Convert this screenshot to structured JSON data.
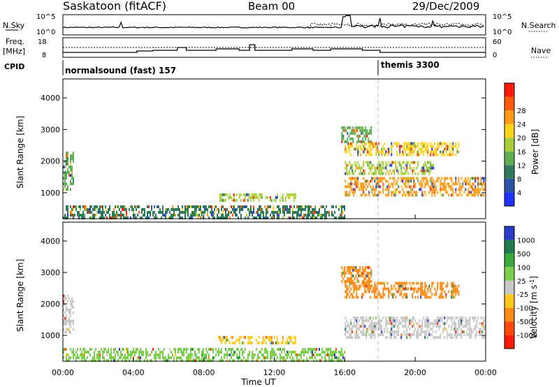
{
  "header": {
    "station": "Saskatoon (fitACF)",
    "beam": "Beam 00",
    "date": "29/Dec/2009"
  },
  "panels": {
    "nsky": {
      "label": "N.Sky",
      "left_ticks": [
        "10^5",
        "10^0"
      ],
      "right_ticks": [
        "10^5",
        "10^0"
      ],
      "right_label": "N.Search"
    },
    "freq": {
      "label_top": "Freq.",
      "label_unit": "[MHz]",
      "left_ticks": [
        "18",
        "8"
      ],
      "right_ticks": [
        "60",
        "0"
      ],
      "right_label": "Nave"
    },
    "cpid": {
      "label": "CPID",
      "modes": [
        {
          "name": "normalsound (fast) 157",
          "start_hour": 0
        },
        {
          "name": "themis 3300",
          "start_hour": 18
        }
      ]
    }
  },
  "chart_data": [
    {
      "type": "heatmap",
      "title": "",
      "xlabel": "Time UT",
      "ylabel": "Slant Range [km]",
      "x_ticks": [
        "00:00",
        "04:00",
        "08:00",
        "12:00",
        "16:00",
        "20:00",
        "00:00"
      ],
      "x_range_hours": [
        0,
        24
      ],
      "y_ticks": [
        1000,
        2000,
        3000,
        4000
      ],
      "ylim": [
        180,
        4600
      ],
      "colorbar": {
        "label": "Power [dB]",
        "ticks": [
          "4",
          "8",
          "12",
          "16",
          "20",
          "24",
          "28"
        ],
        "range": [
          0,
          30
        ],
        "colors": [
          "#1e32ff",
          "#2e54a8",
          "#2f7a5a",
          "#5fae55",
          "#a8cf3a",
          "#ffd21e",
          "#ff9a14",
          "#ff5a0a",
          "#ff1a0a"
        ]
      },
      "echo_regions": [
        {
          "hours": [
            0.0,
            0.6
          ],
          "km": [
            1100,
            2300
          ],
          "level": 12
        },
        {
          "hours": [
            8.8,
            13.2
          ],
          "km": [
            800,
            980
          ],
          "level": 14
        },
        {
          "hours": [
            0.0,
            16.0
          ],
          "km": [
            200,
            600
          ],
          "level": 6
        },
        {
          "hours": [
            16.0,
            24.0
          ],
          "km": [
            900,
            1500
          ],
          "level": 24
        },
        {
          "hours": [
            16.0,
            22.5
          ],
          "km": [
            2200,
            2600
          ],
          "level": 20
        },
        {
          "hours": [
            16.0,
            21.0
          ],
          "km": [
            1600,
            2000
          ],
          "level": 16
        },
        {
          "hours": [
            15.8,
            17.5
          ],
          "km": [
            2600,
            3100
          ],
          "level": 10
        }
      ]
    },
    {
      "type": "heatmap",
      "title": "",
      "xlabel": "Time UT",
      "ylabel": "Slant Range [km]",
      "x_ticks": [
        "00:00",
        "04:00",
        "08:00",
        "12:00",
        "16:00",
        "20:00",
        "00:00"
      ],
      "x_range_hours": [
        0,
        24
      ],
      "y_ticks": [
        1000,
        2000,
        3000,
        4000
      ],
      "ylim": [
        180,
        4600
      ],
      "colorbar": {
        "label": "Velocity [m s^-1]",
        "ticks": [
          "1000",
          "500",
          "100",
          "25",
          "-25",
          "-100",
          "-500",
          "-1000"
        ],
        "colors": [
          "#2a3cc8",
          "#1f7a4e",
          "#3aaa3a",
          "#7ad04a",
          "#c8c8c8",
          "#ffc81e",
          "#ff8a14",
          "#ff4a0a",
          "#ff1a0a"
        ]
      },
      "echo_regions": [
        {
          "hours": [
            0.0,
            0.6
          ],
          "km": [
            1100,
            2300
          ],
          "level": "ground-scatter"
        },
        {
          "hours": [
            8.8,
            13.2
          ],
          "km": [
            800,
            980
          ],
          "level": "-100"
        },
        {
          "hours": [
            0.0,
            16.0
          ],
          "km": [
            200,
            600
          ],
          "level": "100"
        },
        {
          "hours": [
            16.0,
            24.0
          ],
          "km": [
            900,
            1600
          ],
          "level": "ground-scatter"
        },
        {
          "hours": [
            16.0,
            22.5
          ],
          "km": [
            2200,
            2700
          ],
          "level": "-500"
        },
        {
          "hours": [
            15.8,
            17.5
          ],
          "km": [
            2700,
            3200
          ],
          "level": "-500"
        }
      ]
    }
  ]
}
